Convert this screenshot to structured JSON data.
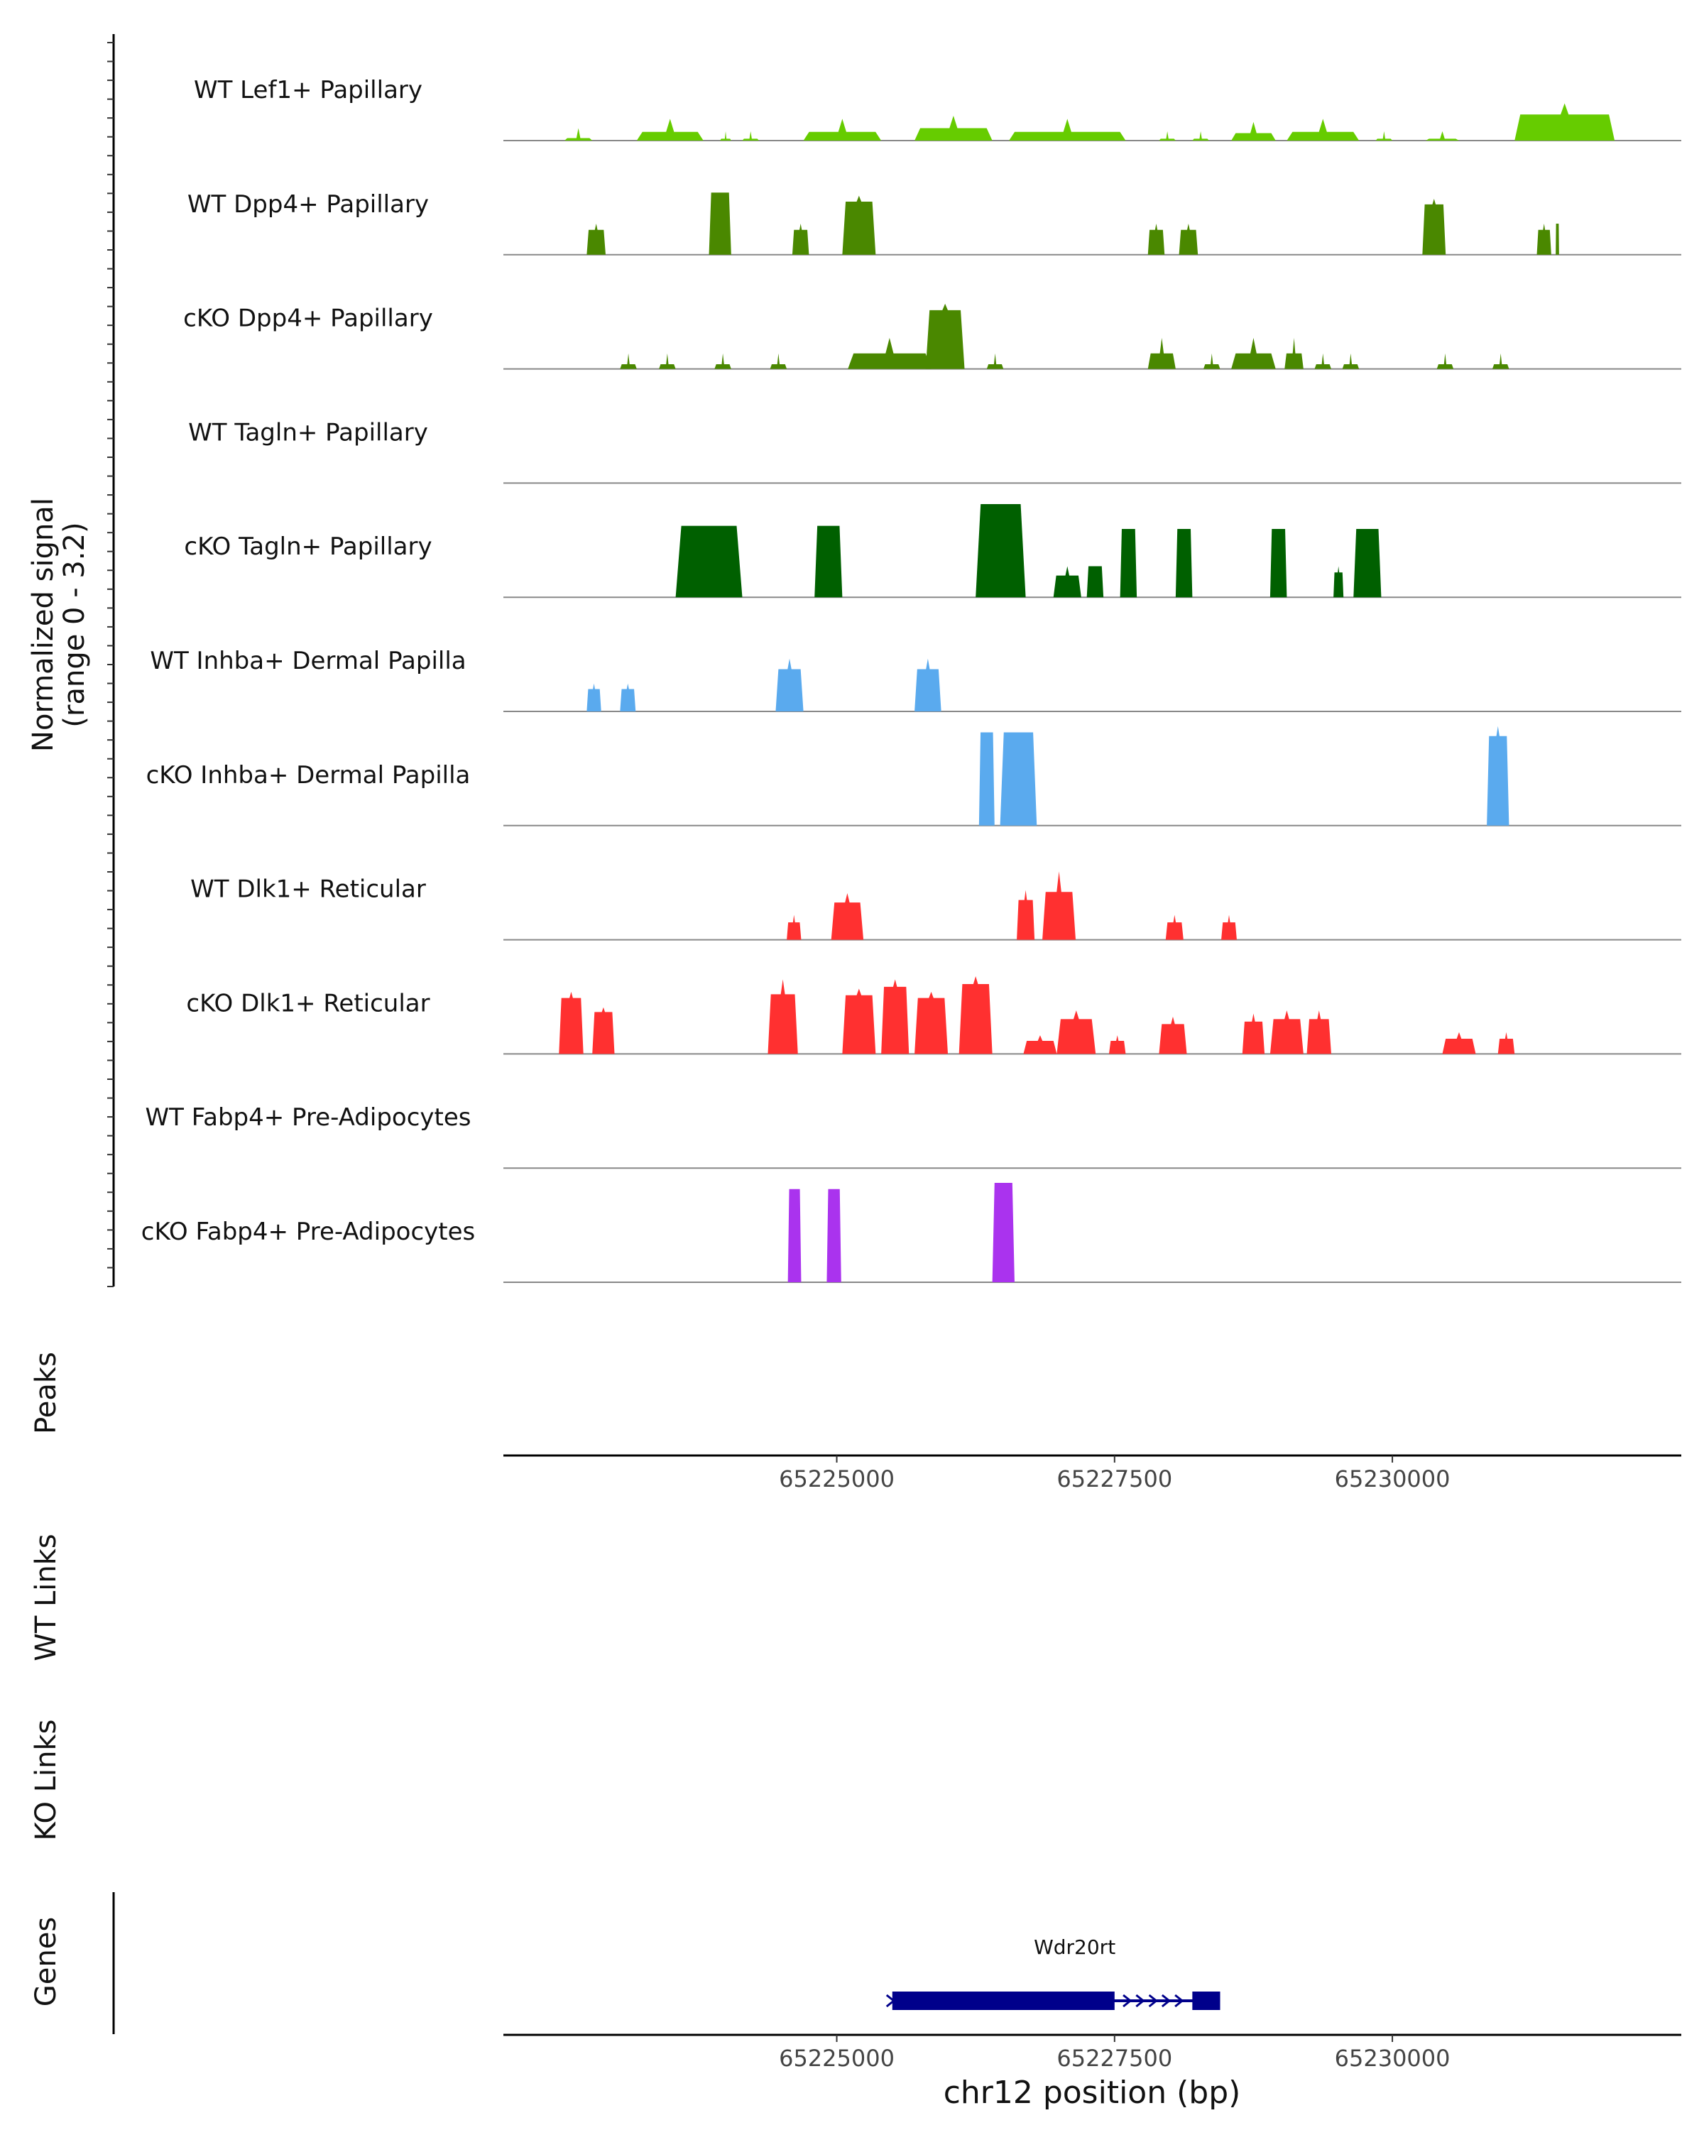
{
  "chart_data": {
    "type": "area",
    "subtype": "genome-coverage-track",
    "region": {
      "chromosome": "chr12",
      "xlim": [
        65222000,
        65232600
      ]
    },
    "ylabel_line1": "Normalized signal",
    "ylabel_line2": "(range 0 - 3.2)",
    "ylim": [
      0,
      3.2
    ],
    "tracks": [
      {
        "name": "WT Lef1+ Papillary",
        "color": "#66cc00",
        "peaks": [
          [
            65222550,
            65222800,
            0.4,
            0.2
          ],
          [
            65223200,
            65223800,
            0.7,
            0.4
          ],
          [
            65223950,
            65224050,
            0.3,
            0.2
          ],
          [
            65224150,
            65224300,
            0.3,
            0.2
          ],
          [
            65224700,
            65225400,
            0.7,
            0.4
          ],
          [
            65225700,
            65226400,
            0.8,
            0.5
          ],
          [
            65226550,
            65227600,
            0.7,
            0.4
          ],
          [
            65227900,
            65228050,
            0.3,
            0.2
          ],
          [
            65228200,
            65228350,
            0.3,
            0.2
          ],
          [
            65228550,
            65228950,
            0.6,
            0.4
          ],
          [
            65229050,
            65229700,
            0.7,
            0.4
          ],
          [
            65229850,
            65230000,
            0.3,
            0.2
          ],
          [
            65230300,
            65230600,
            0.3,
            0.2
          ],
          [
            65231100,
            65232000,
            1.2,
            0.7
          ]
        ]
      },
      {
        "name": "WT Dpp4+ Papillary",
        "color": "#4a8800",
        "peaks": [
          [
            65222750,
            65222920,
            1.0,
            0.8
          ],
          [
            65223850,
            65224050,
            2.0,
            1.0
          ],
          [
            65224600,
            65224750,
            1.0,
            0.8
          ],
          [
            65225050,
            65225350,
            1.9,
            0.9
          ],
          [
            65227800,
            65227950,
            1.0,
            0.8
          ],
          [
            65228080,
            65228250,
            1.0,
            0.8
          ],
          [
            65230270,
            65230480,
            1.8,
            0.9
          ],
          [
            65231300,
            65231430,
            1.0,
            0.8
          ],
          [
            65231470,
            65231500,
            1.0,
            1.0
          ]
        ]
      },
      {
        "name": "cKO Dpp4+ Papillary",
        "color": "#4a8800",
        "peaks": [
          [
            65223050,
            65223200,
            0.5,
            0.3
          ],
          [
            65223400,
            65223550,
            0.5,
            0.3
          ],
          [
            65223900,
            65224050,
            0.5,
            0.3
          ],
          [
            65224400,
            65224550,
            0.5,
            0.3
          ],
          [
            65225100,
            65225850,
            1.0,
            0.5
          ],
          [
            65225800,
            65226150,
            2.1,
            0.9
          ],
          [
            65226350,
            65226500,
            0.5,
            0.3
          ],
          [
            65227800,
            65228050,
            1.0,
            0.5
          ],
          [
            65228300,
            65228450,
            0.5,
            0.3
          ],
          [
            65228550,
            65228950,
            1.0,
            0.5
          ],
          [
            65229030,
            65229200,
            1.0,
            0.5
          ],
          [
            65229300,
            65229450,
            0.5,
            0.3
          ],
          [
            65229550,
            65229700,
            0.5,
            0.3
          ],
          [
            65230400,
            65230550,
            0.5,
            0.3
          ],
          [
            65230900,
            65231050,
            0.5,
            0.3
          ]
        ]
      },
      {
        "name": "WT Tagln+ Papillary",
        "color": "#006000",
        "peaks": []
      },
      {
        "name": "cKO Tagln+ Papillary",
        "color": "#006000",
        "peaks": [
          [
            65223550,
            65224150,
            2.3,
            1.0
          ],
          [
            65224800,
            65225050,
            2.3,
            1.0
          ],
          [
            65226250,
            65226700,
            3.0,
            1.0
          ],
          [
            65226950,
            65227200,
            1.0,
            0.7
          ],
          [
            65227250,
            65227400,
            1.0,
            1.0
          ],
          [
            65227550,
            65227700,
            2.2,
            1.0
          ],
          [
            65228050,
            65228200,
            2.2,
            1.0
          ],
          [
            65228900,
            65229050,
            2.2,
            1.0
          ],
          [
            65229470,
            65229560,
            1.0,
            0.8
          ],
          [
            65229650,
            65229900,
            2.2,
            1.0
          ]
        ]
      },
      {
        "name": "WT Inhba+ Dermal Papilla",
        "color": "#5aaaee",
        "peaks": [
          [
            65222750,
            65222880,
            0.9,
            0.8
          ],
          [
            65223050,
            65223190,
            0.9,
            0.8
          ],
          [
            65224450,
            65224700,
            1.7,
            0.8
          ],
          [
            65225700,
            65225940,
            1.7,
            0.8
          ]
        ]
      },
      {
        "name": "cKO Inhba+ Dermal Papilla",
        "color": "#5aaaee",
        "peaks": [
          [
            65226280,
            65226420,
            3.0,
            1.0
          ],
          [
            65226470,
            65226800,
            3.0,
            1.0
          ],
          [
            65230850,
            65231050,
            3.2,
            0.9
          ]
        ]
      },
      {
        "name": "WT Dlk1+ Reticular",
        "color": "#ff3030",
        "peaks": [
          [
            65224550,
            65224680,
            0.8,
            0.7
          ],
          [
            65224950,
            65225240,
            1.5,
            0.8
          ],
          [
            65226620,
            65226780,
            1.6,
            0.8
          ],
          [
            65226850,
            65227150,
            2.2,
            0.7
          ],
          [
            65227960,
            65228120,
            0.8,
            0.7
          ],
          [
            65228460,
            65228600,
            0.8,
            0.7
          ]
        ]
      },
      {
        "name": "cKO Dlk1+ Reticular",
        "color": "#ff3030",
        "peaks": [
          [
            65222500,
            65222720,
            2.0,
            0.9
          ],
          [
            65222800,
            65223000,
            1.5,
            0.9
          ],
          [
            65224380,
            65224650,
            2.4,
            0.8
          ],
          [
            65225050,
            65225350,
            2.1,
            0.9
          ],
          [
            65225400,
            65225650,
            2.4,
            0.9
          ],
          [
            65225700,
            65226000,
            2.0,
            0.9
          ],
          [
            65226100,
            65226400,
            2.5,
            0.9
          ],
          [
            65226680,
            65226980,
            0.6,
            0.7
          ],
          [
            65226980,
            65227330,
            1.4,
            0.8
          ],
          [
            65227450,
            65227600,
            0.6,
            0.7
          ],
          [
            65227900,
            65228150,
            1.2,
            0.8
          ],
          [
            65228650,
            65228850,
            1.3,
            0.8
          ],
          [
            65228900,
            65229200,
            1.4,
            0.8
          ],
          [
            65229230,
            65229450,
            1.4,
            0.8
          ],
          [
            65230450,
            65230750,
            0.7,
            0.7
          ],
          [
            65230950,
            65231100,
            0.7,
            0.7
          ]
        ]
      },
      {
        "name": "WT Fabp4+ Pre-Adipocytes",
        "color": "#aa33ee",
        "peaks": []
      },
      {
        "name": "cKO Fabp4+ Pre-Adipocytes",
        "color": "#aa33ee",
        "peaks": [
          [
            65224560,
            65224680,
            3.0,
            1.0
          ],
          [
            65224910,
            65225040,
            3.0,
            1.0
          ],
          [
            65226400,
            65226600,
            3.2,
            1.0
          ]
        ]
      }
    ],
    "x_ticks": [
      65225000,
      65227500,
      65230000
    ],
    "x_tick_labels": [
      "65225000",
      "65227500",
      "65230000"
    ],
    "xlabel": "chr12 position (bp)",
    "panels": {
      "peaks": "Peaks",
      "wt_links": "WT Links",
      "ko_links": "KO Links",
      "genes": "Genes"
    },
    "gene": {
      "name": "Wdr20rt",
      "start": 65225500,
      "end": 65228450,
      "color": "#00008b",
      "exons": [
        [
          65225500,
          65227500
        ],
        [
          65228200,
          65228450
        ]
      ],
      "strand": "+"
    }
  }
}
